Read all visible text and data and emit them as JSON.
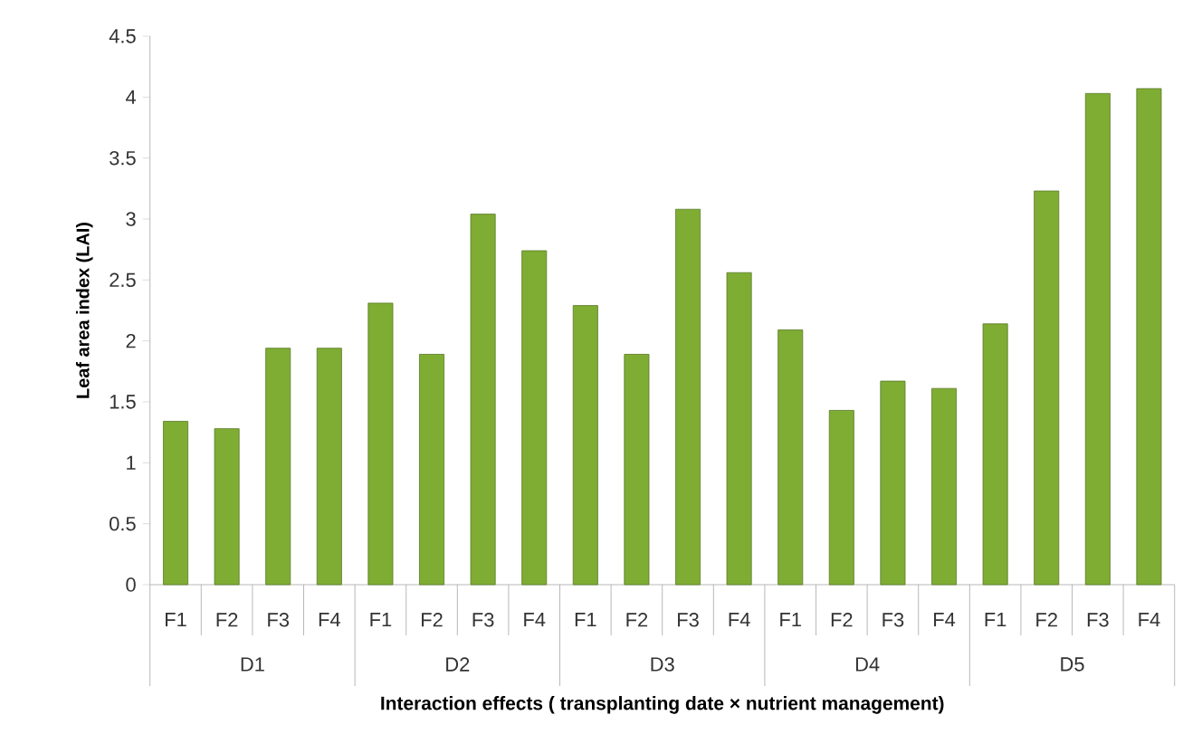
{
  "chart_data": {
    "type": "bar",
    "xlabel": "Interaction effects ( transplanting date × nutrient management)",
    "ylabel": "Leaf area index (LAI)",
    "categories": [
      "F1",
      "F2",
      "F3",
      "F4",
      "F1",
      "F2",
      "F3",
      "F4",
      "F1",
      "F2",
      "F3",
      "F4",
      "F1",
      "F2",
      "F3",
      "F4",
      "F1",
      "F2",
      "F3",
      "F4"
    ],
    "values": [
      1.34,
      1.28,
      1.94,
      1.94,
      2.31,
      1.89,
      3.04,
      2.74,
      2.29,
      1.89,
      3.08,
      2.56,
      2.09,
      1.43,
      1.67,
      1.61,
      2.14,
      3.23,
      4.03,
      4.07
    ],
    "color": "#7fad34",
    "ylim": [
      0,
      4.5
    ],
    "yticks": [
      0,
      0.5,
      1,
      1.5,
      2,
      2.5,
      3,
      3.5,
      4,
      4.5
    ],
    "annotations": [
      "D1",
      "D2",
      "D3",
      "D4",
      "D5"
    ]
  }
}
